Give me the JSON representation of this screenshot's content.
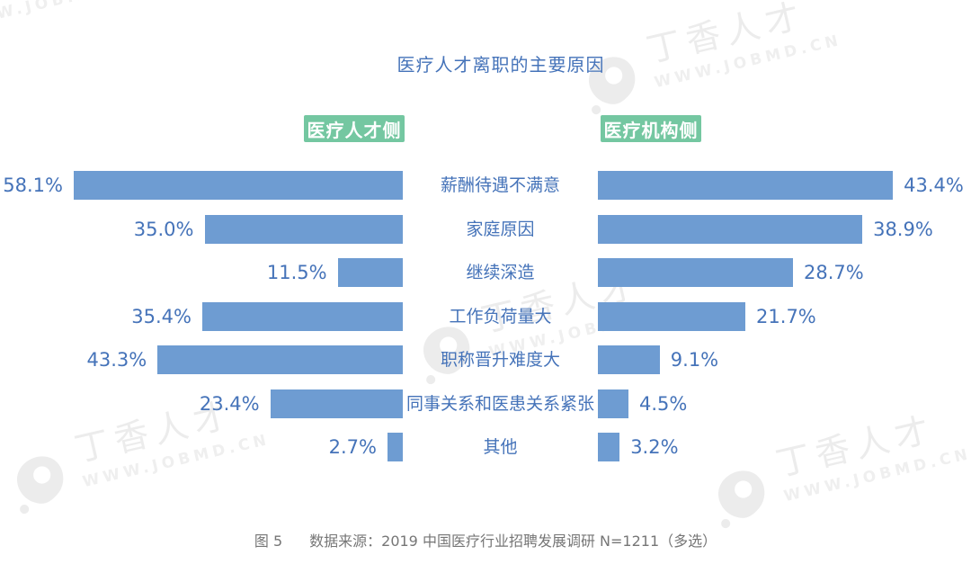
{
  "title": "医疗人才离职的主要原因",
  "badges": {
    "left": "医疗人才侧",
    "right": "医疗机构侧"
  },
  "chart_data": {
    "type": "bar",
    "subtype": "tornado-horizontal",
    "title": "医疗人才离职的主要原因",
    "categories": [
      "薪酬待遇不满意",
      "家庭原因",
      "继续深造",
      "工作负荷量大",
      "职称晋升难度大",
      "同事关系和医患关系紧张",
      "其他"
    ],
    "series": [
      {
        "name": "医疗人才侧",
        "side": "left",
        "values": [
          58.1,
          35.0,
          11.5,
          35.4,
          43.3,
          23.4,
          2.7
        ],
        "labels": [
          "58.1%",
          "35.0%",
          "11.5%",
          "35.4%",
          "43.3%",
          "23.4%",
          "2.7%"
        ]
      },
      {
        "name": "医疗机构侧",
        "side": "right",
        "values": [
          43.4,
          38.9,
          28.7,
          21.7,
          9.1,
          4.5,
          3.2
        ],
        "labels": [
          "43.4%",
          "38.9%",
          "28.7%",
          "21.7%",
          "9.1%",
          "4.5%",
          "3.2%"
        ]
      }
    ],
    "xlabel": "",
    "ylabel": "",
    "value_suffix": "%",
    "xlim_left": [
      0,
      60
    ],
    "xlim_right": [
      0,
      45
    ],
    "grid": false,
    "legend_position": "top-badges",
    "bar_color": "#6E9CD2",
    "text_color": "#4573B9",
    "badge_color": "#74C7A1",
    "footer_color": "#767676",
    "watermark_color": "#ececec"
  },
  "footer": {
    "fig_label": "图 5",
    "source": "数据来源：2019 中国医疗行业招聘发展调研 N=1211（多选）"
  },
  "watermark": {
    "brand": "丁香人才",
    "url": "WWW.JOBMD.CN"
  }
}
